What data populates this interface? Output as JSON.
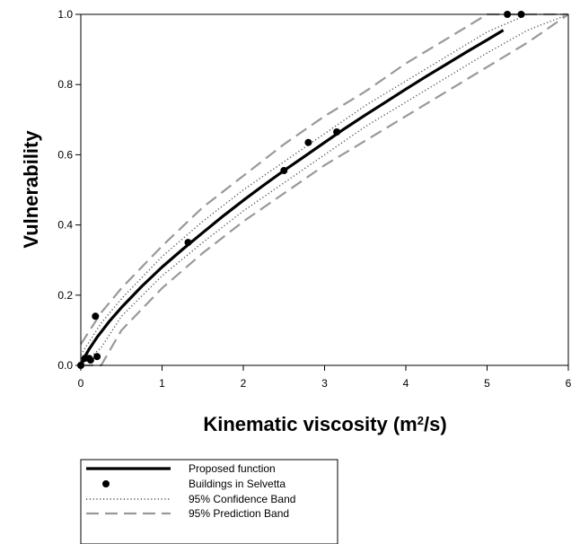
{
  "chart_data": {
    "type": "scatter",
    "xlabel": "Kinematic viscosity (m",
    "xlabel_sup": "2",
    "xlabel_end": "/s)",
    "ylabel": "Vulnerability",
    "xlim": [
      0,
      6
    ],
    "ylim": [
      0,
      1
    ],
    "x_ticks": [
      "0",
      "1",
      "2",
      "3",
      "4",
      "5",
      "6"
    ],
    "y_ticks": [
      "0.0",
      "0.2",
      "0.4",
      "0.6",
      "0.8",
      "1.0"
    ],
    "grid": false,
    "legend_position": "bottom-left",
    "series": [
      {
        "name": "Proposed function",
        "kind": "line",
        "style": "solid",
        "color": "#000000",
        "x": [
          0,
          0.05,
          0.1,
          0.2,
          0.35,
          0.5,
          0.75,
          1,
          1.25,
          1.5,
          1.75,
          2,
          2.25,
          2.5,
          2.75,
          3,
          3.25,
          3.5,
          3.75,
          4,
          4.25,
          4.5,
          4.75,
          5,
          5.2
        ],
        "y": [
          0,
          0.025,
          0.045,
          0.08,
          0.125,
          0.165,
          0.225,
          0.28,
          0.33,
          0.378,
          0.425,
          0.47,
          0.513,
          0.555,
          0.595,
          0.635,
          0.675,
          0.713,
          0.75,
          0.787,
          0.823,
          0.858,
          0.893,
          0.927,
          0.955
        ]
      },
      {
        "name": "Buildings in Selvetta",
        "kind": "scatter",
        "color": "#000000",
        "x": [
          0,
          0.05,
          0.1,
          0.12,
          0.18,
          0.2,
          1.32,
          2.5,
          2.8,
          3.15,
          5.25,
          5.42
        ],
        "y": [
          0,
          0.02,
          0.02,
          0.015,
          0.14,
          0.025,
          0.35,
          0.555,
          0.635,
          0.665,
          1.0,
          1.0
        ]
      },
      {
        "name": "95% Confidence Band",
        "kind": "band",
        "style": "dotted",
        "color": "#555555",
        "x": [
          0,
          0.25,
          0.5,
          1,
          1.5,
          2,
          2.5,
          3,
          3.5,
          4,
          4.5,
          5,
          5.5,
          6
        ],
        "upper": [
          0.03,
          0.12,
          0.19,
          0.31,
          0.41,
          0.5,
          0.58,
          0.66,
          0.74,
          0.81,
          0.88,
          0.95,
          1.0,
          1.0
        ],
        "lower": [
          0.0,
          0.05,
          0.14,
          0.255,
          0.35,
          0.44,
          0.52,
          0.6,
          0.68,
          0.75,
          0.82,
          0.89,
          0.955,
          1.0
        ]
      },
      {
        "name": "95% Prediction Band",
        "kind": "band",
        "style": "dashed",
        "color": "#999999",
        "x": [
          0,
          0.25,
          0.5,
          1,
          1.5,
          2,
          2.5,
          3,
          3.5,
          4,
          4.5,
          5,
          5.5,
          6
        ],
        "upper": [
          0.06,
          0.15,
          0.22,
          0.34,
          0.45,
          0.54,
          0.63,
          0.71,
          0.78,
          0.86,
          0.93,
          1.0,
          1.0,
          1.0
        ],
        "lower": [
          0.0,
          0.0,
          0.1,
          0.22,
          0.32,
          0.41,
          0.49,
          0.57,
          0.64,
          0.71,
          0.78,
          0.85,
          0.92,
          1.0
        ]
      }
    ]
  }
}
